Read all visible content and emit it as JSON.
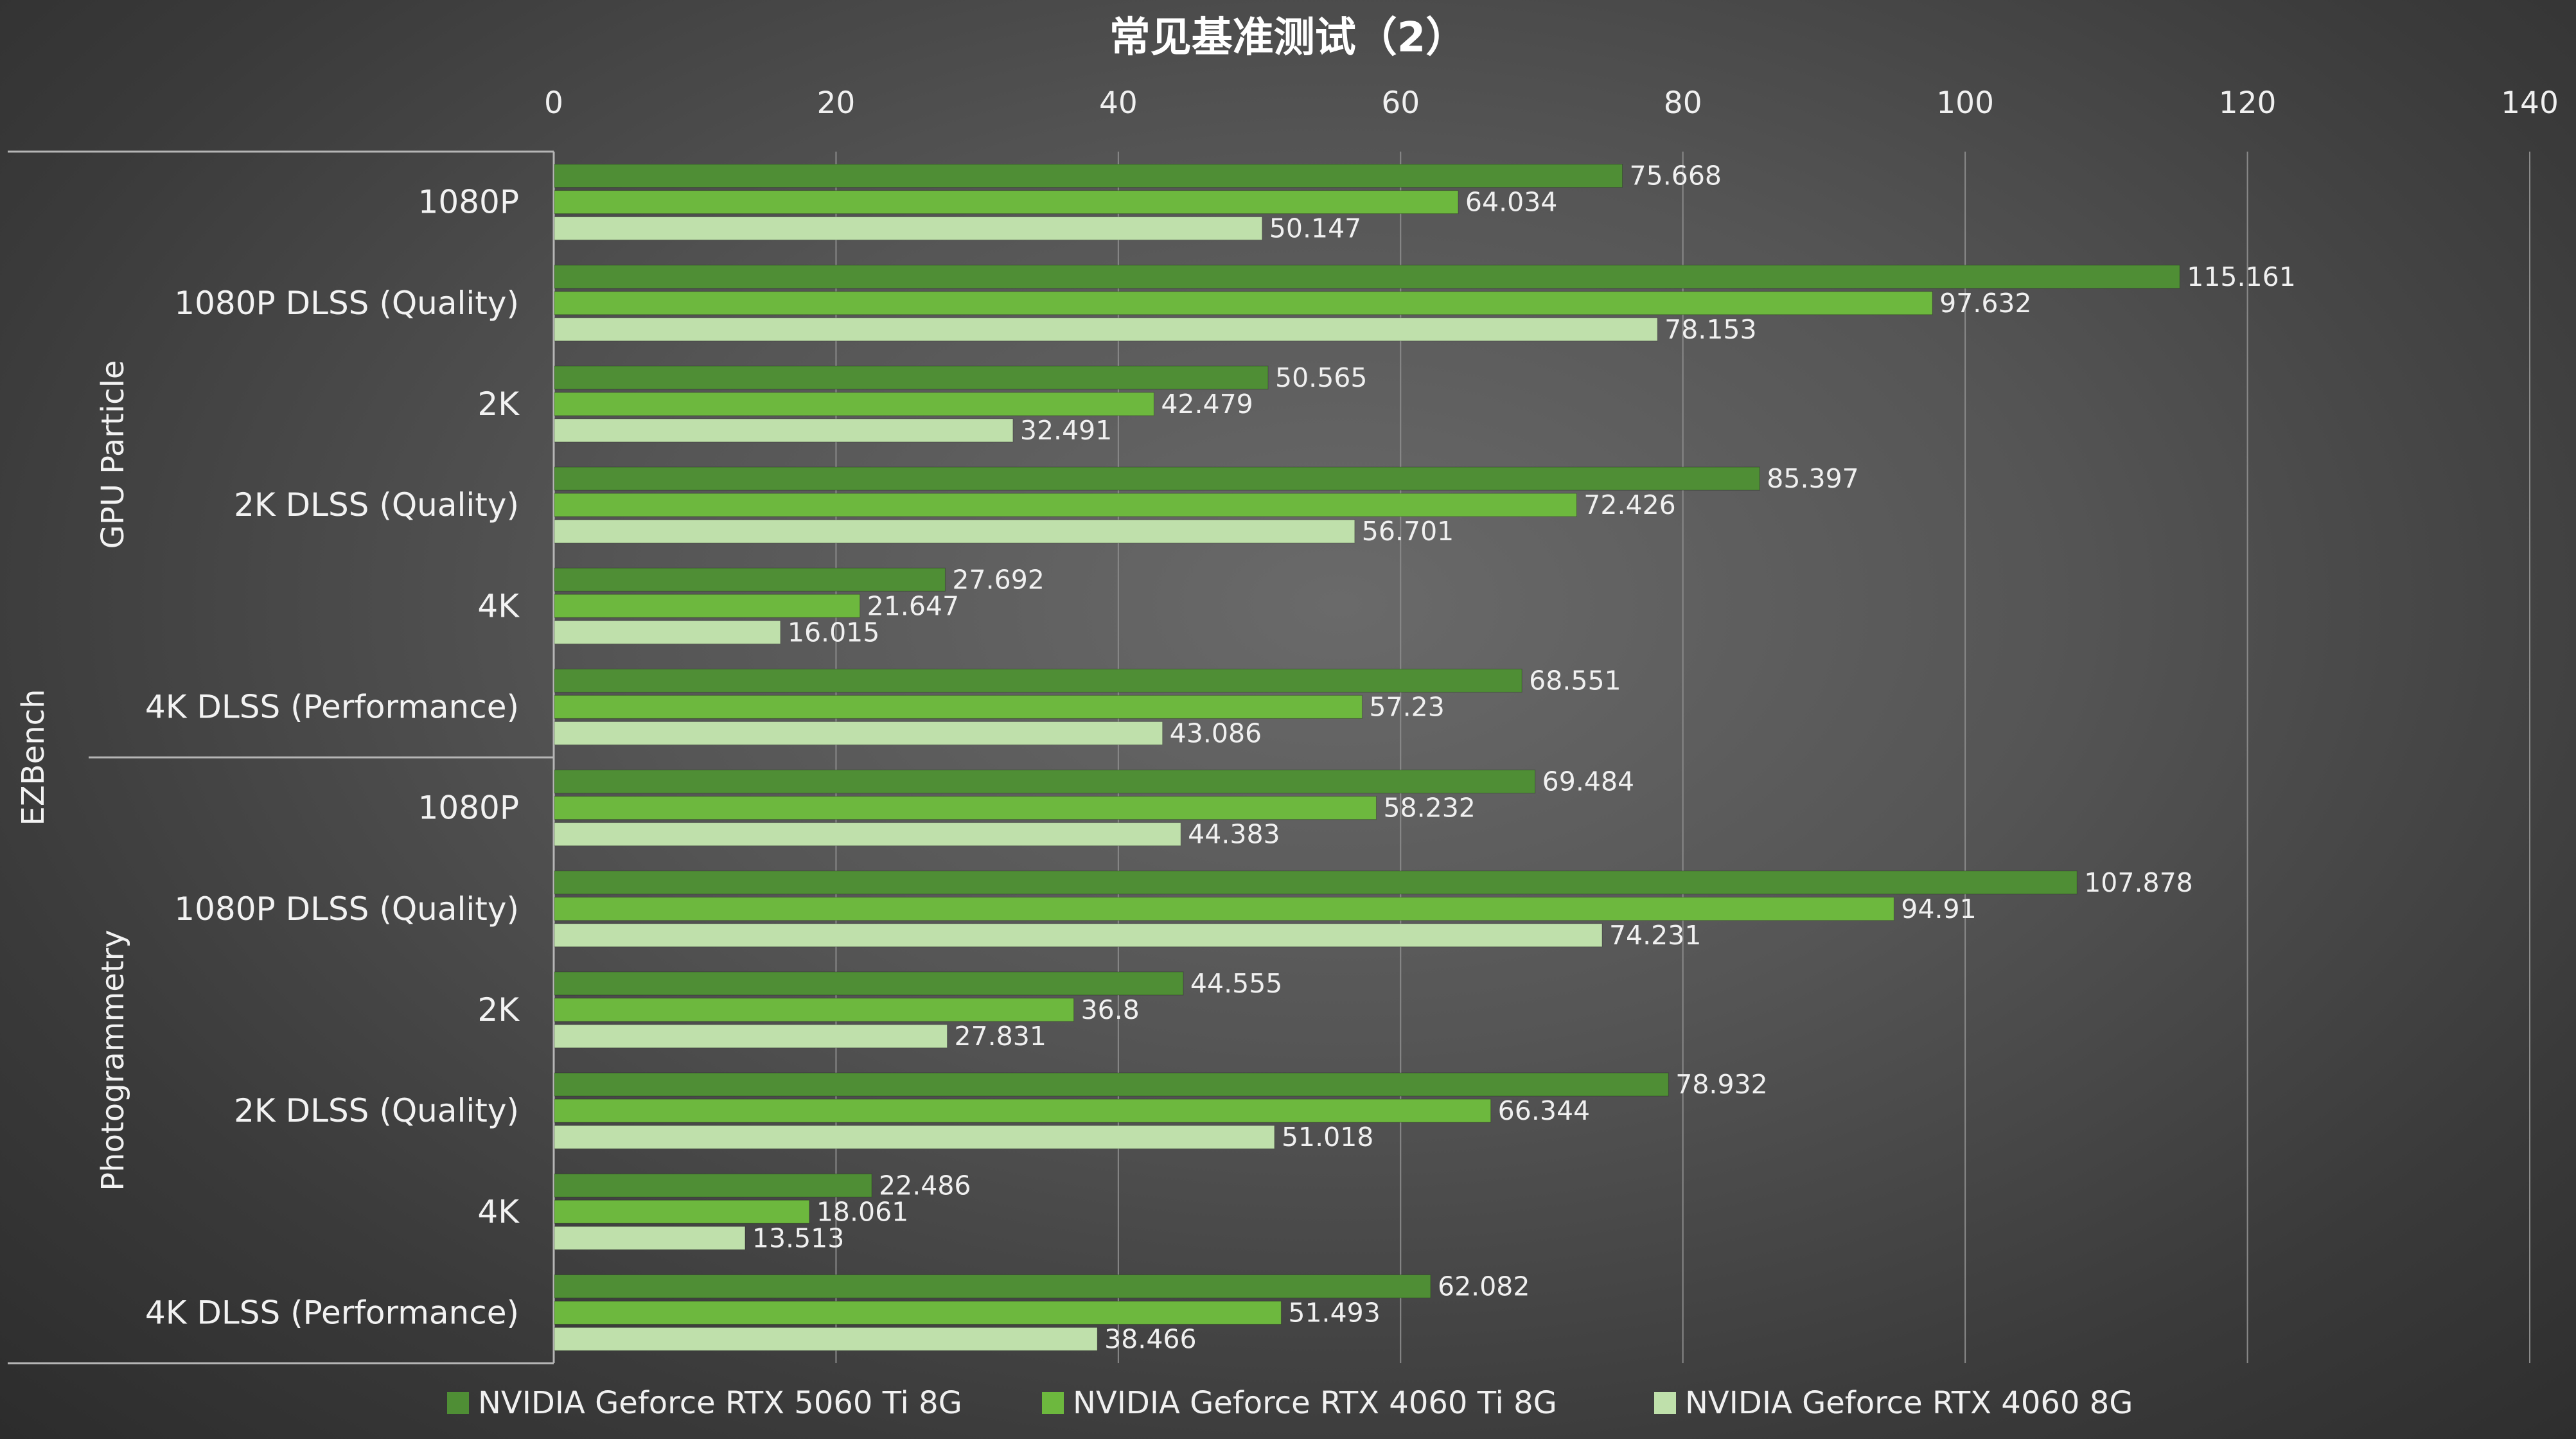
{
  "chart_data": {
    "type": "bar",
    "orientation": "horizontal",
    "title": "常见基准测试（2）",
    "xlabel": "",
    "ylabel": "",
    "xlim": [
      0,
      140
    ],
    "x_ticks": [
      "0",
      "20",
      "40",
      "60",
      "80",
      "100",
      "120",
      "140"
    ],
    "grid": true,
    "legend_position": "bottom",
    "outer_group": "EZBench",
    "groups": [
      {
        "name": "GPU Particle",
        "categories": [
          "1080P",
          "1080P DLSS (Quality)",
          "2K",
          "2K DLSS (Quality)",
          "4K",
          "4K DLSS (Performance)"
        ]
      },
      {
        "name": "Photogrammetry",
        "categories": [
          "1080P",
          "1080P DLSS (Quality)",
          "2K",
          "2K DLSS (Quality)",
          "4K",
          "4K DLSS (Performance)"
        ]
      }
    ],
    "series": [
      {
        "name": "NVIDIA Geforce RTX 5060 Ti 8G",
        "color": "#4f8e35",
        "values": [
          75.668,
          115.161,
          50.565,
          85.397,
          27.692,
          68.551,
          69.484,
          107.878,
          44.555,
          78.932,
          22.486,
          62.082
        ],
        "labels": [
          "75.668",
          "115.161",
          "50.565",
          "85.397",
          "27.692",
          "68.551",
          "69.484",
          "107.878",
          "44.555",
          "78.932",
          "22.486",
          "62.082"
        ]
      },
      {
        "name": "NVIDIA Geforce RTX 4060 Ti 8G",
        "color": "#6db83e",
        "values": [
          64.034,
          97.632,
          42.479,
          72.426,
          21.647,
          57.23,
          58.232,
          94.91,
          36.8,
          66.344,
          18.061,
          51.493
        ],
        "labels": [
          "64.034",
          "97.632",
          "42.479",
          "72.426",
          "21.647",
          "57.23",
          "58.232",
          "94.91",
          "36.8",
          "66.344",
          "18.061",
          "51.493"
        ]
      },
      {
        "name": "NVIDIA Geforce RTX 4060 8G",
        "color": "#bfe0ab",
        "values": [
          50.147,
          78.153,
          32.491,
          56.701,
          16.015,
          43.086,
          44.383,
          74.231,
          27.831,
          51.018,
          13.513,
          38.466
        ],
        "labels": [
          "50.147",
          "78.153",
          "32.491",
          "56.701",
          "16.015",
          "43.086",
          "44.383",
          "74.231",
          "27.831",
          "51.018",
          "13.513",
          "38.466"
        ]
      }
    ]
  }
}
